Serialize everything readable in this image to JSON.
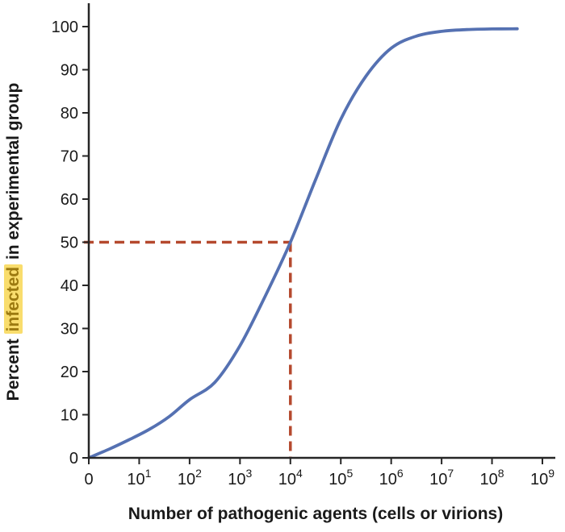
{
  "chart_data": {
    "type": "line",
    "title": "",
    "xlabel": "Number of pathogenic agents (cells or virions)",
    "ylabel": {
      "before": "Percent ",
      "highlight": "infected",
      "after": " in experimental group"
    },
    "x_axis": {
      "scale": "log-decades",
      "range_decades": [
        0,
        9
      ],
      "tick_labels": [
        {
          "base": "0",
          "exp": ""
        },
        {
          "base": "10",
          "exp": "1"
        },
        {
          "base": "10",
          "exp": "2"
        },
        {
          "base": "10",
          "exp": "3"
        },
        {
          "base": "10",
          "exp": "4"
        },
        {
          "base": "10",
          "exp": "5"
        },
        {
          "base": "10",
          "exp": "6"
        },
        {
          "base": "10",
          "exp": "7"
        },
        {
          "base": "10",
          "exp": "8"
        },
        {
          "base": "10",
          "exp": "9"
        }
      ]
    },
    "y_axis": {
      "range": [
        0,
        100
      ],
      "ticks": [
        0,
        10,
        20,
        30,
        40,
        50,
        60,
        70,
        80,
        90,
        100
      ]
    },
    "series": [
      {
        "name": "percent-infected",
        "color": "#5571b2",
        "points_decade_percent": [
          [
            0,
            0
          ],
          [
            0.4,
            2
          ],
          [
            0.8,
            4.2
          ],
          [
            1.2,
            6.6
          ],
          [
            1.6,
            9.6
          ],
          [
            2.0,
            13.5
          ],
          [
            2.5,
            17.5
          ],
          [
            3.0,
            26
          ],
          [
            3.5,
            37.5
          ],
          [
            4.0,
            50
          ],
          [
            4.5,
            64.5
          ],
          [
            5.0,
            78.5
          ],
          [
            5.5,
            88.5
          ],
          [
            6.0,
            95
          ],
          [
            6.5,
            97.8
          ],
          [
            7.0,
            98.9
          ],
          [
            7.5,
            99.3
          ],
          [
            8.0,
            99.45
          ],
          [
            8.5,
            99.5
          ]
        ]
      }
    ],
    "annotation": {
      "name": "ID50 marker",
      "color": "#b5492e",
      "x_decade": 4,
      "y_percent": 50
    },
    "legend": null,
    "grid": false
  },
  "colors": {
    "axis": "#262626",
    "tick_text": "#1a1a1a",
    "highlight_bg": "#f9dd6d",
    "highlight_text": "#9c7a10"
  }
}
